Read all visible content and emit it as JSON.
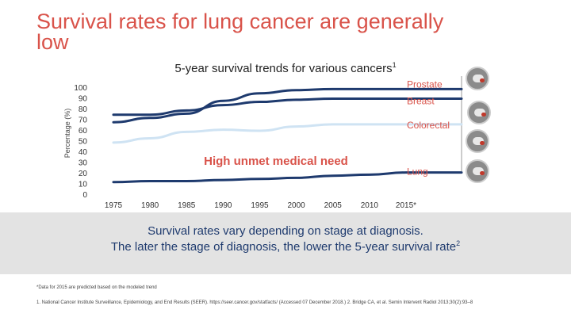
{
  "slide": {
    "title": "Survival rates for lung cancer are generally low",
    "subtitle": "5-year survival trends for various cancers",
    "subtitle_ref": "1",
    "band_line1": "Survival rates vary depending on stage at diagnosis.",
    "band_line2": "The later the stage of diagnosis, the lower the 5-year survival rate",
    "band_line2_ref": "2",
    "footnote1": "*Data for 2015 are predicted based on the modeled trend",
    "footnote2": "1. National Cancer Institute Surveillance, Epidemiology, and End Results (SEER). https://seer.cancer.gov/statfacts/ (Accessed 07 December 2018.) 2. Bridge CA, et al. Semin Intervent Radiol 2013;30(2):93–8",
    "icons": [
      "prostate-icon",
      "breast-icon",
      "colorectal-icon",
      "lung-icon"
    ]
  },
  "chart_data": {
    "type": "line",
    "title": "5-year survival trends for various cancers",
    "ylabel": "Percentage (%)",
    "xlabel": "",
    "x": [
      1975,
      1980,
      1985,
      1990,
      1995,
      2000,
      2005,
      2010,
      2015
    ],
    "x_tick_labels": [
      "1975",
      "1980",
      "1985",
      "1990",
      "1995",
      "2000",
      "2005",
      "2010",
      "2015*"
    ],
    "y_ticks": [
      "0",
      "10",
      "20",
      "30",
      "40",
      "50",
      "60",
      "70",
      "80",
      "90",
      "100"
    ],
    "ylim": [
      0,
      100
    ],
    "annotation": "High unmet medical need",
    "colors": {
      "axis": "#999999",
      "series": "#1e3a6e",
      "annotation": "#d9534a",
      "label": "#d9534a"
    },
    "series": [
      {
        "name": "Prostate",
        "color": "#1e3a6e",
        "values": [
          68,
          72,
          76,
          88,
          95,
          98,
          99,
          99,
          99
        ]
      },
      {
        "name": "Breast",
        "color": "#1e3a6e",
        "values": [
          75,
          75,
          79,
          84,
          87,
          89,
          90,
          90,
          90
        ]
      },
      {
        "name": "Colorectal",
        "color": "#cfe3f3",
        "values": [
          49,
          53,
          59,
          61,
          60,
          64,
          66,
          66,
          66
        ]
      },
      {
        "name": "Lung",
        "color": "#1e3a6e",
        "values": [
          12,
          13,
          13,
          14,
          15,
          16,
          18,
          19,
          21
        ]
      }
    ]
  }
}
